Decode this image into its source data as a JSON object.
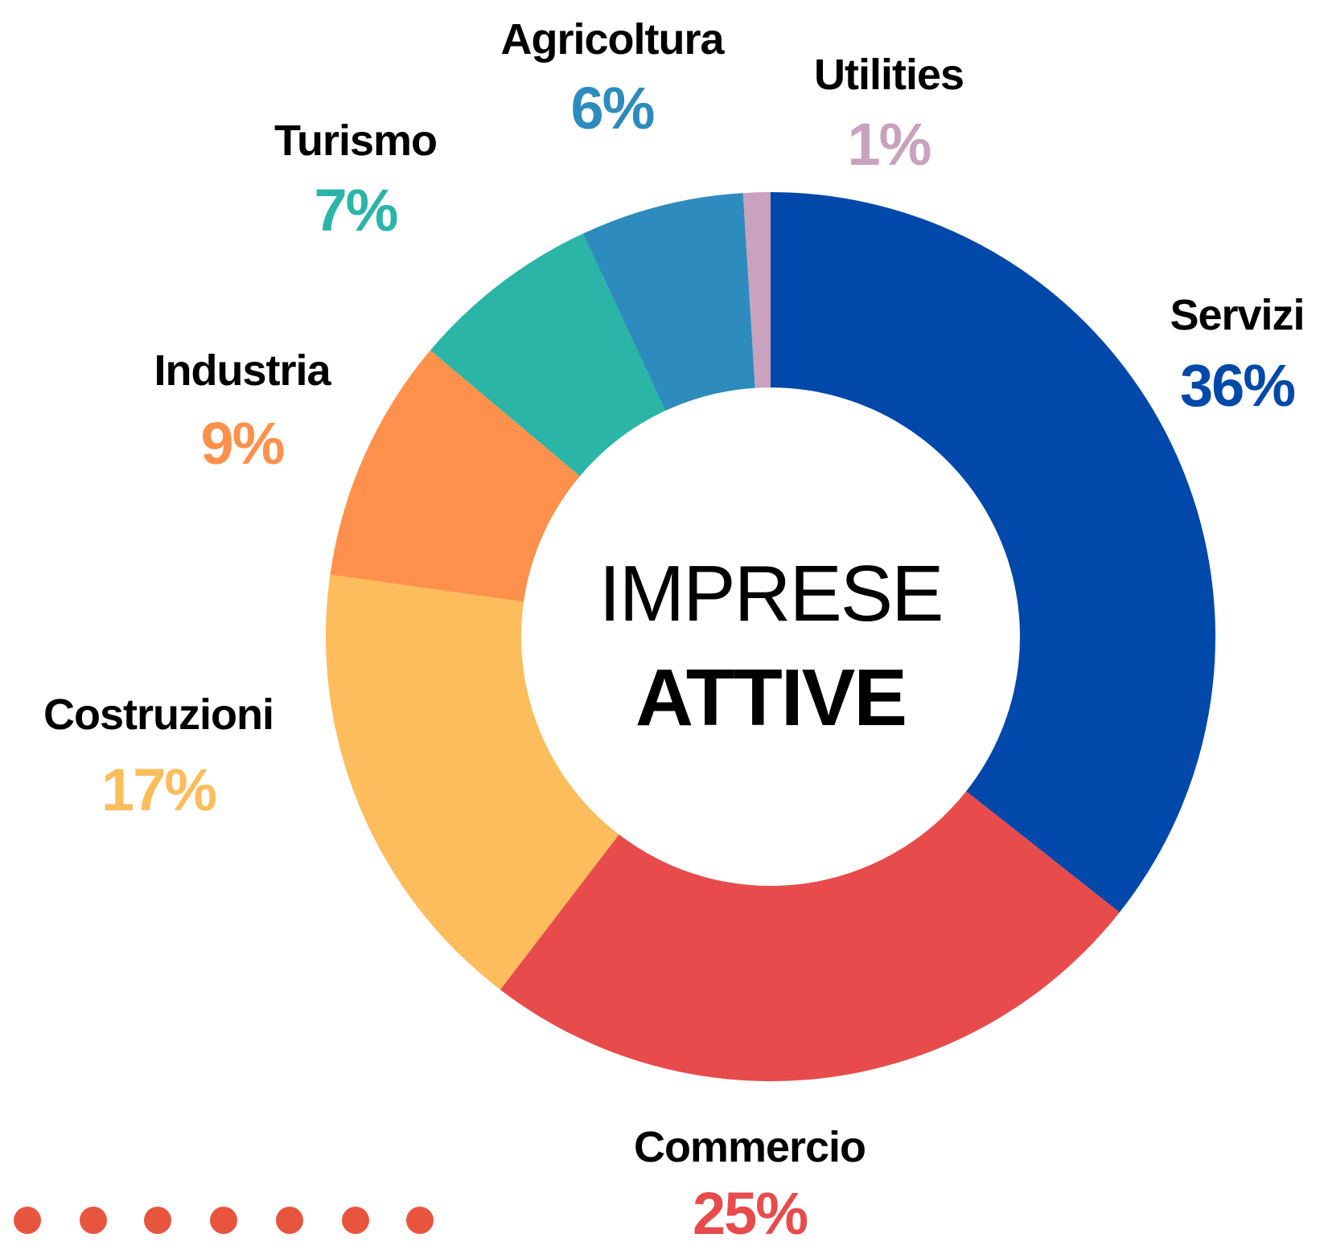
{
  "chart_data": {
    "type": "donut",
    "center_text": [
      "IMPRESE",
      "ATTIVE"
    ],
    "categories": [
      "Servizi",
      "Commercio",
      "Costruzioni",
      "Industria",
      "Turismo",
      "Agricoltura",
      "Utilities"
    ],
    "values": [
      36,
      25,
      17,
      9,
      7,
      6,
      1
    ],
    "value_labels": [
      "36%",
      "25%",
      "17%",
      "9%",
      "7%",
      "6%",
      "1%"
    ],
    "colors": [
      "#0048a9",
      "#e84b4b",
      "#fdbd5c",
      "#ff914d",
      "#2ab5a7",
      "#2e8bbd",
      "#c9a2bd"
    ]
  }
}
